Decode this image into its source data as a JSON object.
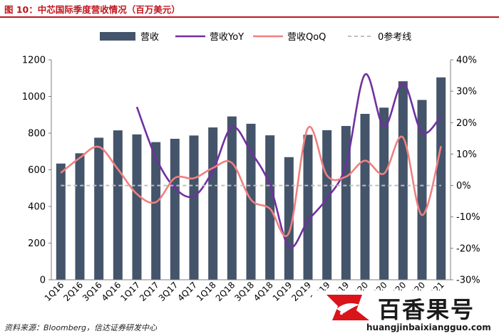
{
  "figure": {
    "title": "图 10：中芯国际季度营收情况（百万美元）",
    "source": "资料来源：Bloomberg，信达证券研发中心"
  },
  "watermark": {
    "name": "百香果号",
    "url": "huangjinbaixiangguo.com"
  },
  "chart_data": {
    "type": "bar",
    "categories": [
      "1Q16",
      "2Q16",
      "3Q16",
      "4Q16",
      "1Q17",
      "2Q17",
      "3Q17",
      "4Q17",
      "1Q18",
      "2Q18",
      "3Q18",
      "4Q18",
      "1Q19",
      "2Q19",
      "3Q19",
      "4Q19",
      "1Q20",
      "2Q20",
      "3Q20",
      "4Q20",
      "1Q21"
    ],
    "series": [
      {
        "name": "营收",
        "type": "bar",
        "axis": "left",
        "color": "#44546a",
        "values": [
          634,
          690,
          775,
          815,
          793,
          751,
          769,
          787,
          831,
          891,
          851,
          788,
          669,
          791,
          816,
          839,
          905,
          939,
          1083,
          981,
          1104
        ]
      },
      {
        "name": "营收YoY",
        "type": "line",
        "axis": "right",
        "color": "#7030a0",
        "values": [
          null,
          null,
          null,
          null,
          25.0,
          8.8,
          -0.8,
          -3.4,
          4.8,
          18.6,
          10.7,
          0.1,
          -19.5,
          -11.2,
          -4.1,
          6.5,
          35.3,
          18.7,
          32.6,
          16.9,
          22.0
        ]
      },
      {
        "name": "营收QoQ",
        "type": "line",
        "axis": "right",
        "color": "#f08080",
        "values": [
          4.0,
          8.8,
          12.3,
          5.2,
          -2.7,
          -5.3,
          2.4,
          2.3,
          5.6,
          7.2,
          -4.5,
          -7.4,
          -15.1,
          18.3,
          3.2,
          2.8,
          7.9,
          3.8,
          15.3,
          -9.4,
          12.5
        ]
      },
      {
        "name": "0参考线",
        "type": "line",
        "axis": "right",
        "color": "#bfbfbf",
        "dashed": true,
        "values": [
          0,
          0,
          0,
          0,
          0,
          0,
          0,
          0,
          0,
          0,
          0,
          0,
          0,
          0,
          0,
          0,
          0,
          0,
          0,
          0,
          0
        ]
      }
    ],
    "y_left": {
      "min": 0,
      "max": 1200,
      "ticks": [
        "0",
        "200",
        "400",
        "600",
        "800",
        "1000",
        "1200"
      ]
    },
    "y_right": {
      "min": -30,
      "max": 40,
      "ticks": [
        "-30%",
        "-20%",
        "-10%",
        "0%",
        "10%",
        "20%",
        "30%",
        "40%"
      ]
    },
    "legend_position": "top",
    "grid": false
  }
}
